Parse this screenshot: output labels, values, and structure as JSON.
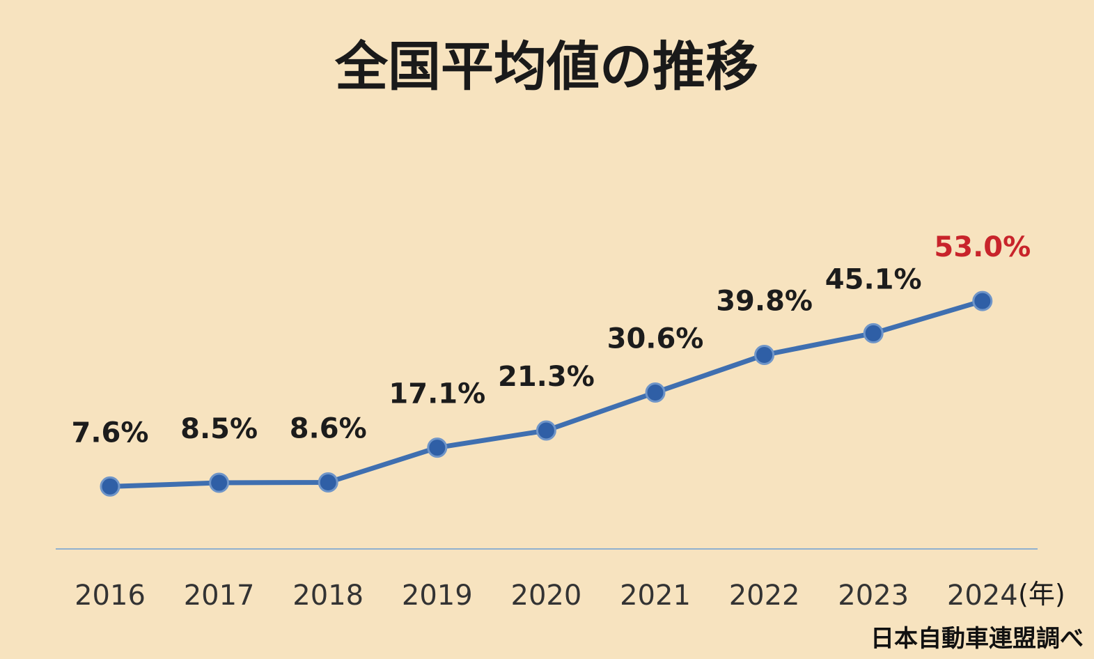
{
  "chart_data": {
    "type": "line",
    "title": "全国平均値の推移",
    "x": [
      "2016",
      "2017",
      "2018",
      "2019",
      "2020",
      "2021",
      "2022",
      "2023",
      "2024"
    ],
    "x_unit": "(年)",
    "series": [
      {
        "values": [
          7.6,
          8.5,
          8.6,
          17.1,
          21.3,
          30.6,
          39.8,
          45.1,
          53.0
        ],
        "labels": [
          "7.6%",
          "8.5%",
          "8.6%",
          "17.1%",
          "21.3%",
          "30.6%",
          "39.8%",
          "45.1%",
          "53.0%"
        ],
        "color": "#3f6fb0"
      }
    ],
    "highlight_index": 8,
    "highlight_color": "#c8242b",
    "ylim": [
      0,
      55
    ],
    "grid": false,
    "legend": "none",
    "source": "日本自動車連盟調べ"
  }
}
